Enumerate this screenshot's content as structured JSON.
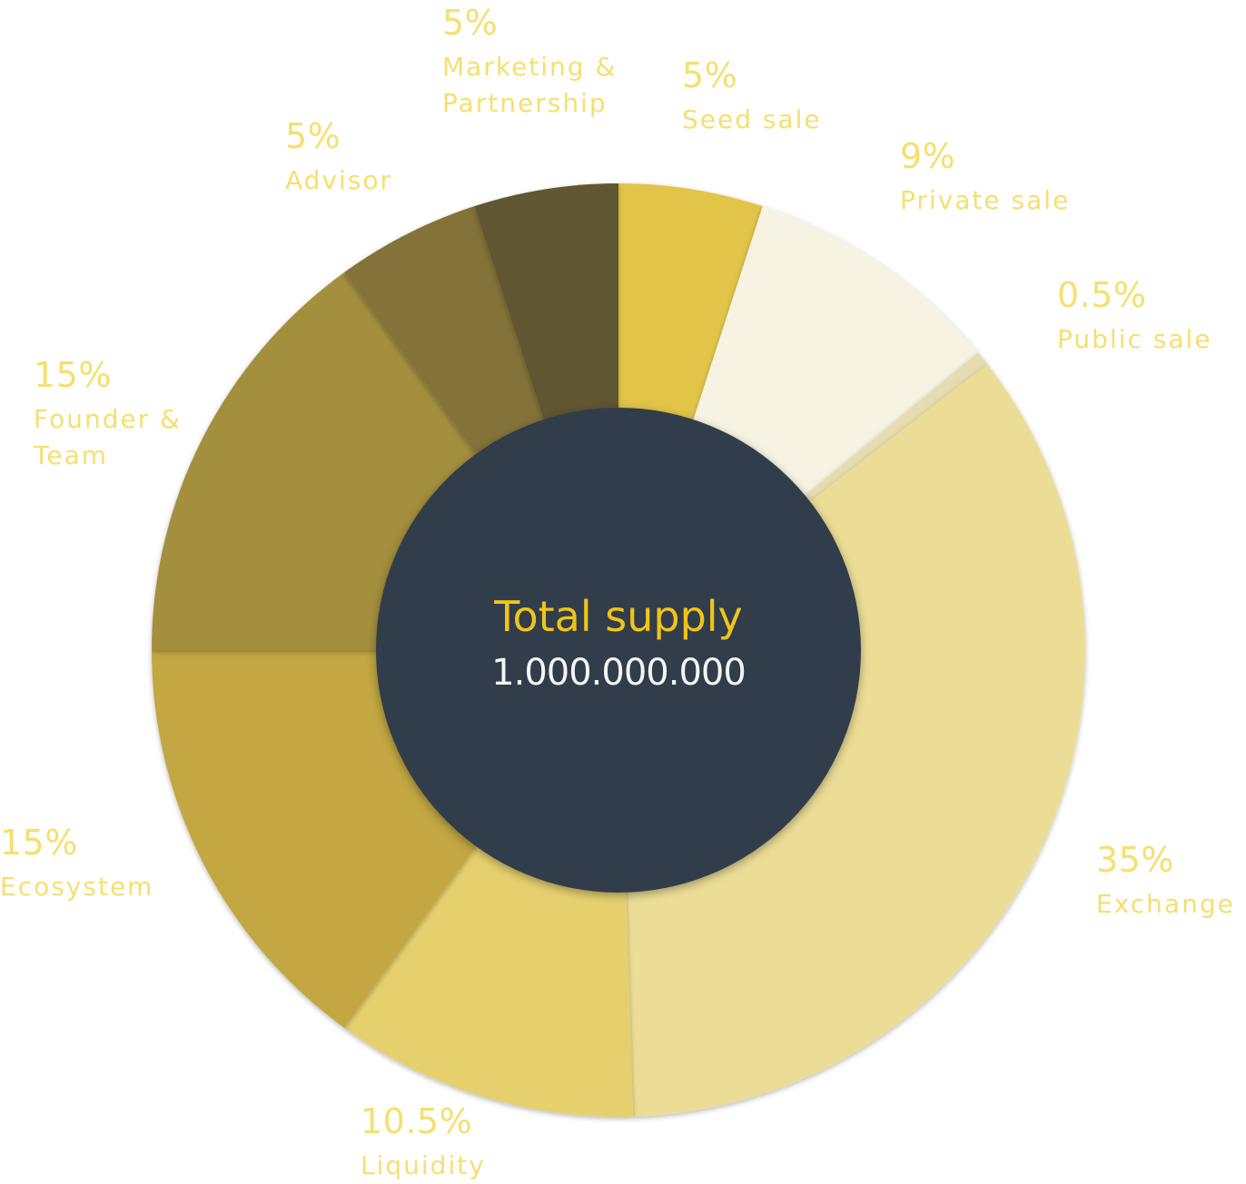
{
  "chart_data": {
    "type": "pie",
    "center": {
      "title": "Total supply",
      "value": "1.000.000.000"
    },
    "slices": [
      {
        "label": "Seed sale",
        "pct_label": "5%",
        "value": 5,
        "color": "#e2c44a"
      },
      {
        "label": "Private sale",
        "pct_label": "9%",
        "value": 9,
        "color": "#f6f3e3"
      },
      {
        "label": "Public sale",
        "pct_label": "0.5%",
        "value": 0.5,
        "color": "#e6dcaf"
      },
      {
        "label": "Exchange",
        "pct_label": "35%",
        "value": 35,
        "color": "#ecdd96"
      },
      {
        "label": "Liquidity",
        "pct_label": "10.5%",
        "value": 10.5,
        "color": "#e6d06e"
      },
      {
        "label": "Ecosystem",
        "pct_label": "15%",
        "value": 15,
        "color": "#c2a743"
      },
      {
        "label": "Founder & Team",
        "pct_label": "15%",
        "value": 15,
        "color": "#a38f3c"
      },
      {
        "label": "Advisor",
        "pct_label": "5%",
        "value": 5,
        "color": "#837339"
      },
      {
        "label": "Marketing & Partnership",
        "pct_label": "5%",
        "value": 5,
        "color": "#615632"
      }
    ],
    "label_color": "#f6df70",
    "center_color": "#313d4b"
  }
}
